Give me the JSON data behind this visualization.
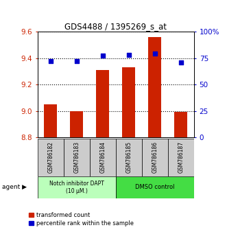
{
  "title": "GDS4488 / 1395269_s_at",
  "samples": [
    "GSM786182",
    "GSM786183",
    "GSM786184",
    "GSM786185",
    "GSM786186",
    "GSM786187"
  ],
  "transformed_counts": [
    9.05,
    9.0,
    9.31,
    9.33,
    9.56,
    8.99
  ],
  "percentile_ranks": [
    72,
    72,
    77,
    78,
    79,
    71
  ],
  "ylim_left": [
    8.8,
    9.6
  ],
  "ylim_right": [
    0,
    100
  ],
  "yticks_left": [
    8.8,
    9.0,
    9.2,
    9.4,
    9.6
  ],
  "yticks_right": [
    0,
    25,
    50,
    75,
    100
  ],
  "ytick_labels_right": [
    "0",
    "25",
    "50",
    "75",
    "100%"
  ],
  "bar_color": "#cc2200",
  "dot_color": "#0000cc",
  "group1_label": "Notch inhibitor DAPT\n(10 μM.)",
  "group2_label": "DMSO control",
  "group1_color": "#bbffbb",
  "group2_color": "#44dd44",
  "group1_indices": [
    0,
    1,
    2
  ],
  "group2_indices": [
    3,
    4,
    5
  ],
  "legend_bar_label": "transformed count",
  "legend_dot_label": "percentile rank within the sample",
  "agent_label": "agent"
}
